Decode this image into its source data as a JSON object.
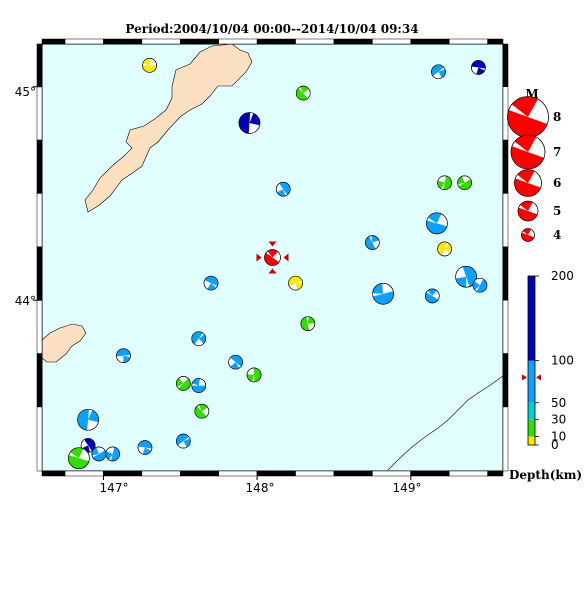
{
  "title": "Period:2004/10/04 00:00--2014/10/04 09:34",
  "map": {
    "lon_range": [
      146.6,
      149.6
    ],
    "lat_range": [
      43.2,
      45.2
    ],
    "lon_ticks": [
      "147°",
      "148°",
      "149°"
    ],
    "lat_ticks": [
      "44°",
      "45°"
    ],
    "colors": {
      "sea": "#e1ffff",
      "land": "#fae0c0",
      "frame": "#000000"
    }
  },
  "target_event": {
    "lon": 148.1,
    "lat": 44.2,
    "color": "#ff0000"
  },
  "events": [
    {
      "lon": 147.3,
      "lat": 45.1,
      "mag": 5,
      "depth": 5
    },
    {
      "lon": 148.3,
      "lat": 44.97,
      "mag": 5,
      "depth": 25
    },
    {
      "lon": 147.95,
      "lat": 44.83,
      "mag": 6,
      "depth": 160
    },
    {
      "lon": 149.18,
      "lat": 45.07,
      "mag": 5,
      "depth": 70
    },
    {
      "lon": 149.44,
      "lat": 45.09,
      "mag": 5,
      "depth": 170
    },
    {
      "lon": 148.17,
      "lat": 44.52,
      "mag": 5,
      "depth": 90
    },
    {
      "lon": 149.22,
      "lat": 44.55,
      "mag": 5,
      "depth": 25
    },
    {
      "lon": 149.35,
      "lat": 44.55,
      "mag": 5,
      "depth": 25
    },
    {
      "lon": 149.17,
      "lat": 44.36,
      "mag": 6,
      "depth": 70
    },
    {
      "lon": 148.75,
      "lat": 44.27,
      "mag": 5,
      "depth": 70
    },
    {
      "lon": 149.22,
      "lat": 44.24,
      "mag": 5,
      "depth": 5
    },
    {
      "lon": 148.25,
      "lat": 44.08,
      "mag": 5,
      "depth": 5
    },
    {
      "lon": 147.7,
      "lat": 44.08,
      "mag": 5,
      "depth": 70
    },
    {
      "lon": 149.36,
      "lat": 44.11,
      "mag": 6,
      "depth": 70
    },
    {
      "lon": 149.45,
      "lat": 44.07,
      "mag": 5,
      "depth": 70
    },
    {
      "lon": 148.82,
      "lat": 44.03,
      "mag": 6,
      "depth": 90
    },
    {
      "lon": 149.14,
      "lat": 44.02,
      "mag": 5,
      "depth": 70
    },
    {
      "lon": 148.33,
      "lat": 43.89,
      "mag": 5,
      "depth": 25
    },
    {
      "lon": 147.62,
      "lat": 43.82,
      "mag": 5,
      "depth": 70
    },
    {
      "lon": 147.13,
      "lat": 43.74,
      "mag": 5,
      "depth": 90
    },
    {
      "lon": 147.86,
      "lat": 43.71,
      "mag": 5,
      "depth": 70
    },
    {
      "lon": 147.98,
      "lat": 43.65,
      "mag": 5,
      "depth": 25
    },
    {
      "lon": 147.52,
      "lat": 43.61,
      "mag": 5,
      "depth": 25
    },
    {
      "lon": 147.62,
      "lat": 43.6,
      "mag": 5,
      "depth": 90
    },
    {
      "lon": 147.64,
      "lat": 43.48,
      "mag": 5,
      "depth": 25
    },
    {
      "lon": 146.9,
      "lat": 43.44,
      "mag": 6,
      "depth": 90
    },
    {
      "lon": 147.52,
      "lat": 43.34,
      "mag": 5,
      "depth": 90
    },
    {
      "lon": 147.27,
      "lat": 43.31,
      "mag": 5,
      "depth": 70
    },
    {
      "lon": 146.9,
      "lat": 43.32,
      "mag": 5,
      "depth": 160
    },
    {
      "lon": 147.06,
      "lat": 43.28,
      "mag": 5,
      "depth": 90
    },
    {
      "lon": 146.97,
      "lat": 43.28,
      "mag": 5,
      "depth": 90
    },
    {
      "lon": 146.84,
      "lat": 43.26,
      "mag": 6,
      "depth": 25
    }
  ],
  "legend": {
    "mag_title": "M",
    "magnitudes": [
      8,
      7,
      6,
      5,
      4
    ],
    "mag_labels": [
      "8",
      "7",
      "6",
      "5",
      "4"
    ],
    "depth_title": "Depth(km)",
    "depth_ticks": [
      0,
      10,
      30,
      50,
      100,
      200
    ],
    "depth_tick_labels": [
      "0",
      "10",
      "30",
      "50",
      "100",
      "200"
    ],
    "marker_depth": 80
  }
}
